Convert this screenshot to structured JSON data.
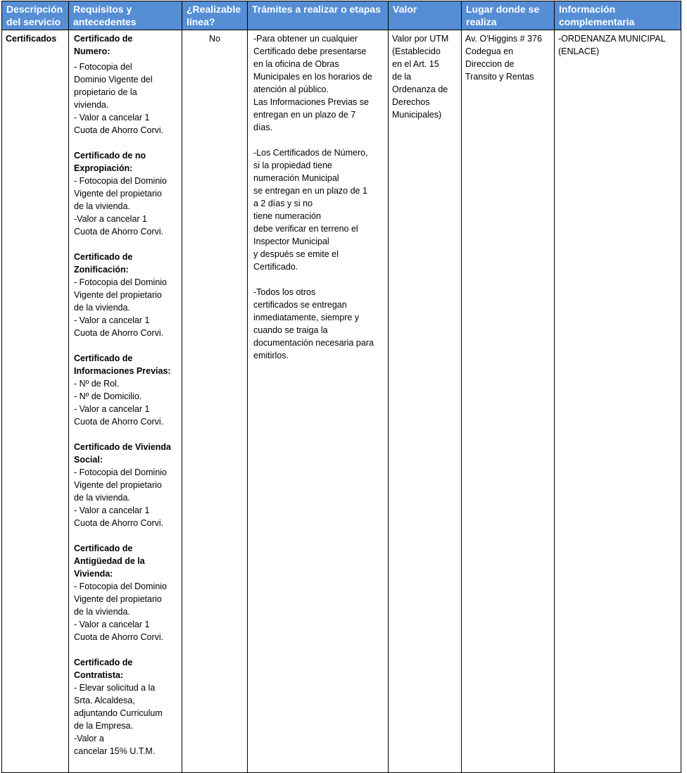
{
  "headers": [
    "Descripción\ndel servicio",
    "Requisitos y\nantecedentes",
    "¿Realizable\nlínea?",
    "Trámites a realizar o etapas",
    "Valor",
    "Lugar donde se\nrealiza",
    "Información\ncomplementaria"
  ],
  "row": {
    "descripcion": "Certificados",
    "requisitos": [
      {
        "title": "Certificado de\nNumero:",
        "body": "- Fotocopia del\nDominio Vigente del\npropietario de la\nvivienda.\n- Valor a cancelar 1\nCuota de Ahorro Corvi."
      },
      {
        "title": "Certificado de no\nExpropiación:",
        "body": "- Fotocopia del Dominio\nVigente del propietario\nde la vivienda.\n-Valor a cancelar 1\nCuota de Ahorro Corvi."
      },
      {
        "title": "Certificado de\nZonificación:",
        "body": "- Fotocopia del Dominio\nVigente del propietario\nde la vivienda.\n- Valor a cancelar 1\nCuota de Ahorro Corvi."
      },
      {
        "title": "Certificado de\nInformaciones Previas:",
        "body": "- Nº de Rol.\n- Nº de Domicilio.\n- Valor a cancelar 1\nCuota de Ahorro Corvi."
      },
      {
        "title": "Certificado de Vivienda\nSocial:",
        "body": "- Fotocopia del Dominio\nVigente del propietario\nde la vivienda.\n- Valor a cancelar 1\nCuota de Ahorro Corvi."
      },
      {
        "title": "Certificado de\nAntigüedad de la\nVivienda:",
        "body": "- Fotocopia del Dominio\nVigente del propietario\nde la vivienda.\n- Valor a cancelar 1\nCuota de Ahorro Corvi."
      },
      {
        "title": "Certificado de\nContratista:",
        "body": "- Elevar solicitud a la\nSrta. Alcaldesa,\nadjuntando Curriculum\nde la Empresa.\n-Valor a\ncancelar  15%    U.T.M."
      }
    ],
    "realizable": "No",
    "tramites": [
      "-Para obtener un cualquier\nCertificado debe presentarse\nen la oficina de Obras\nMunicipales en los horarios de\natención al público.\nLas  Informaciones Previas se\nentregan  en un plazo de 7\ndías.",
      "-Los Certificados de Número,\nsi la propiedad tiene\nnumeración Municipal\nse  entregan  en un plazo de 1\na 2 días y si no\ntiene    numeración\ndebe   verificar en terreno  el\nInspector Municipal\ny  después se emite el\nCertificado.",
      "-Todos  los otros\ncertificados  se entregan\ninmediatamente, siempre y\ncuando se traiga la\ndocumentación necesaria para\nemitirlos."
    ],
    "valor": "Valor por UTM\n(Establecido\nen el Art. 15\nde la\nOrdenanza de\nDerechos\nMunicipales)",
    "lugar": "Av. O'Higgins # 376\nCodegua  en\nDireccion de\nTransito y Rentas",
    "informacion": "-ORDENANZA MUNICIPAL\n(ENLACE)"
  },
  "colors": {
    "header_bg": "#558ed5",
    "header_text": "#ffffff"
  }
}
